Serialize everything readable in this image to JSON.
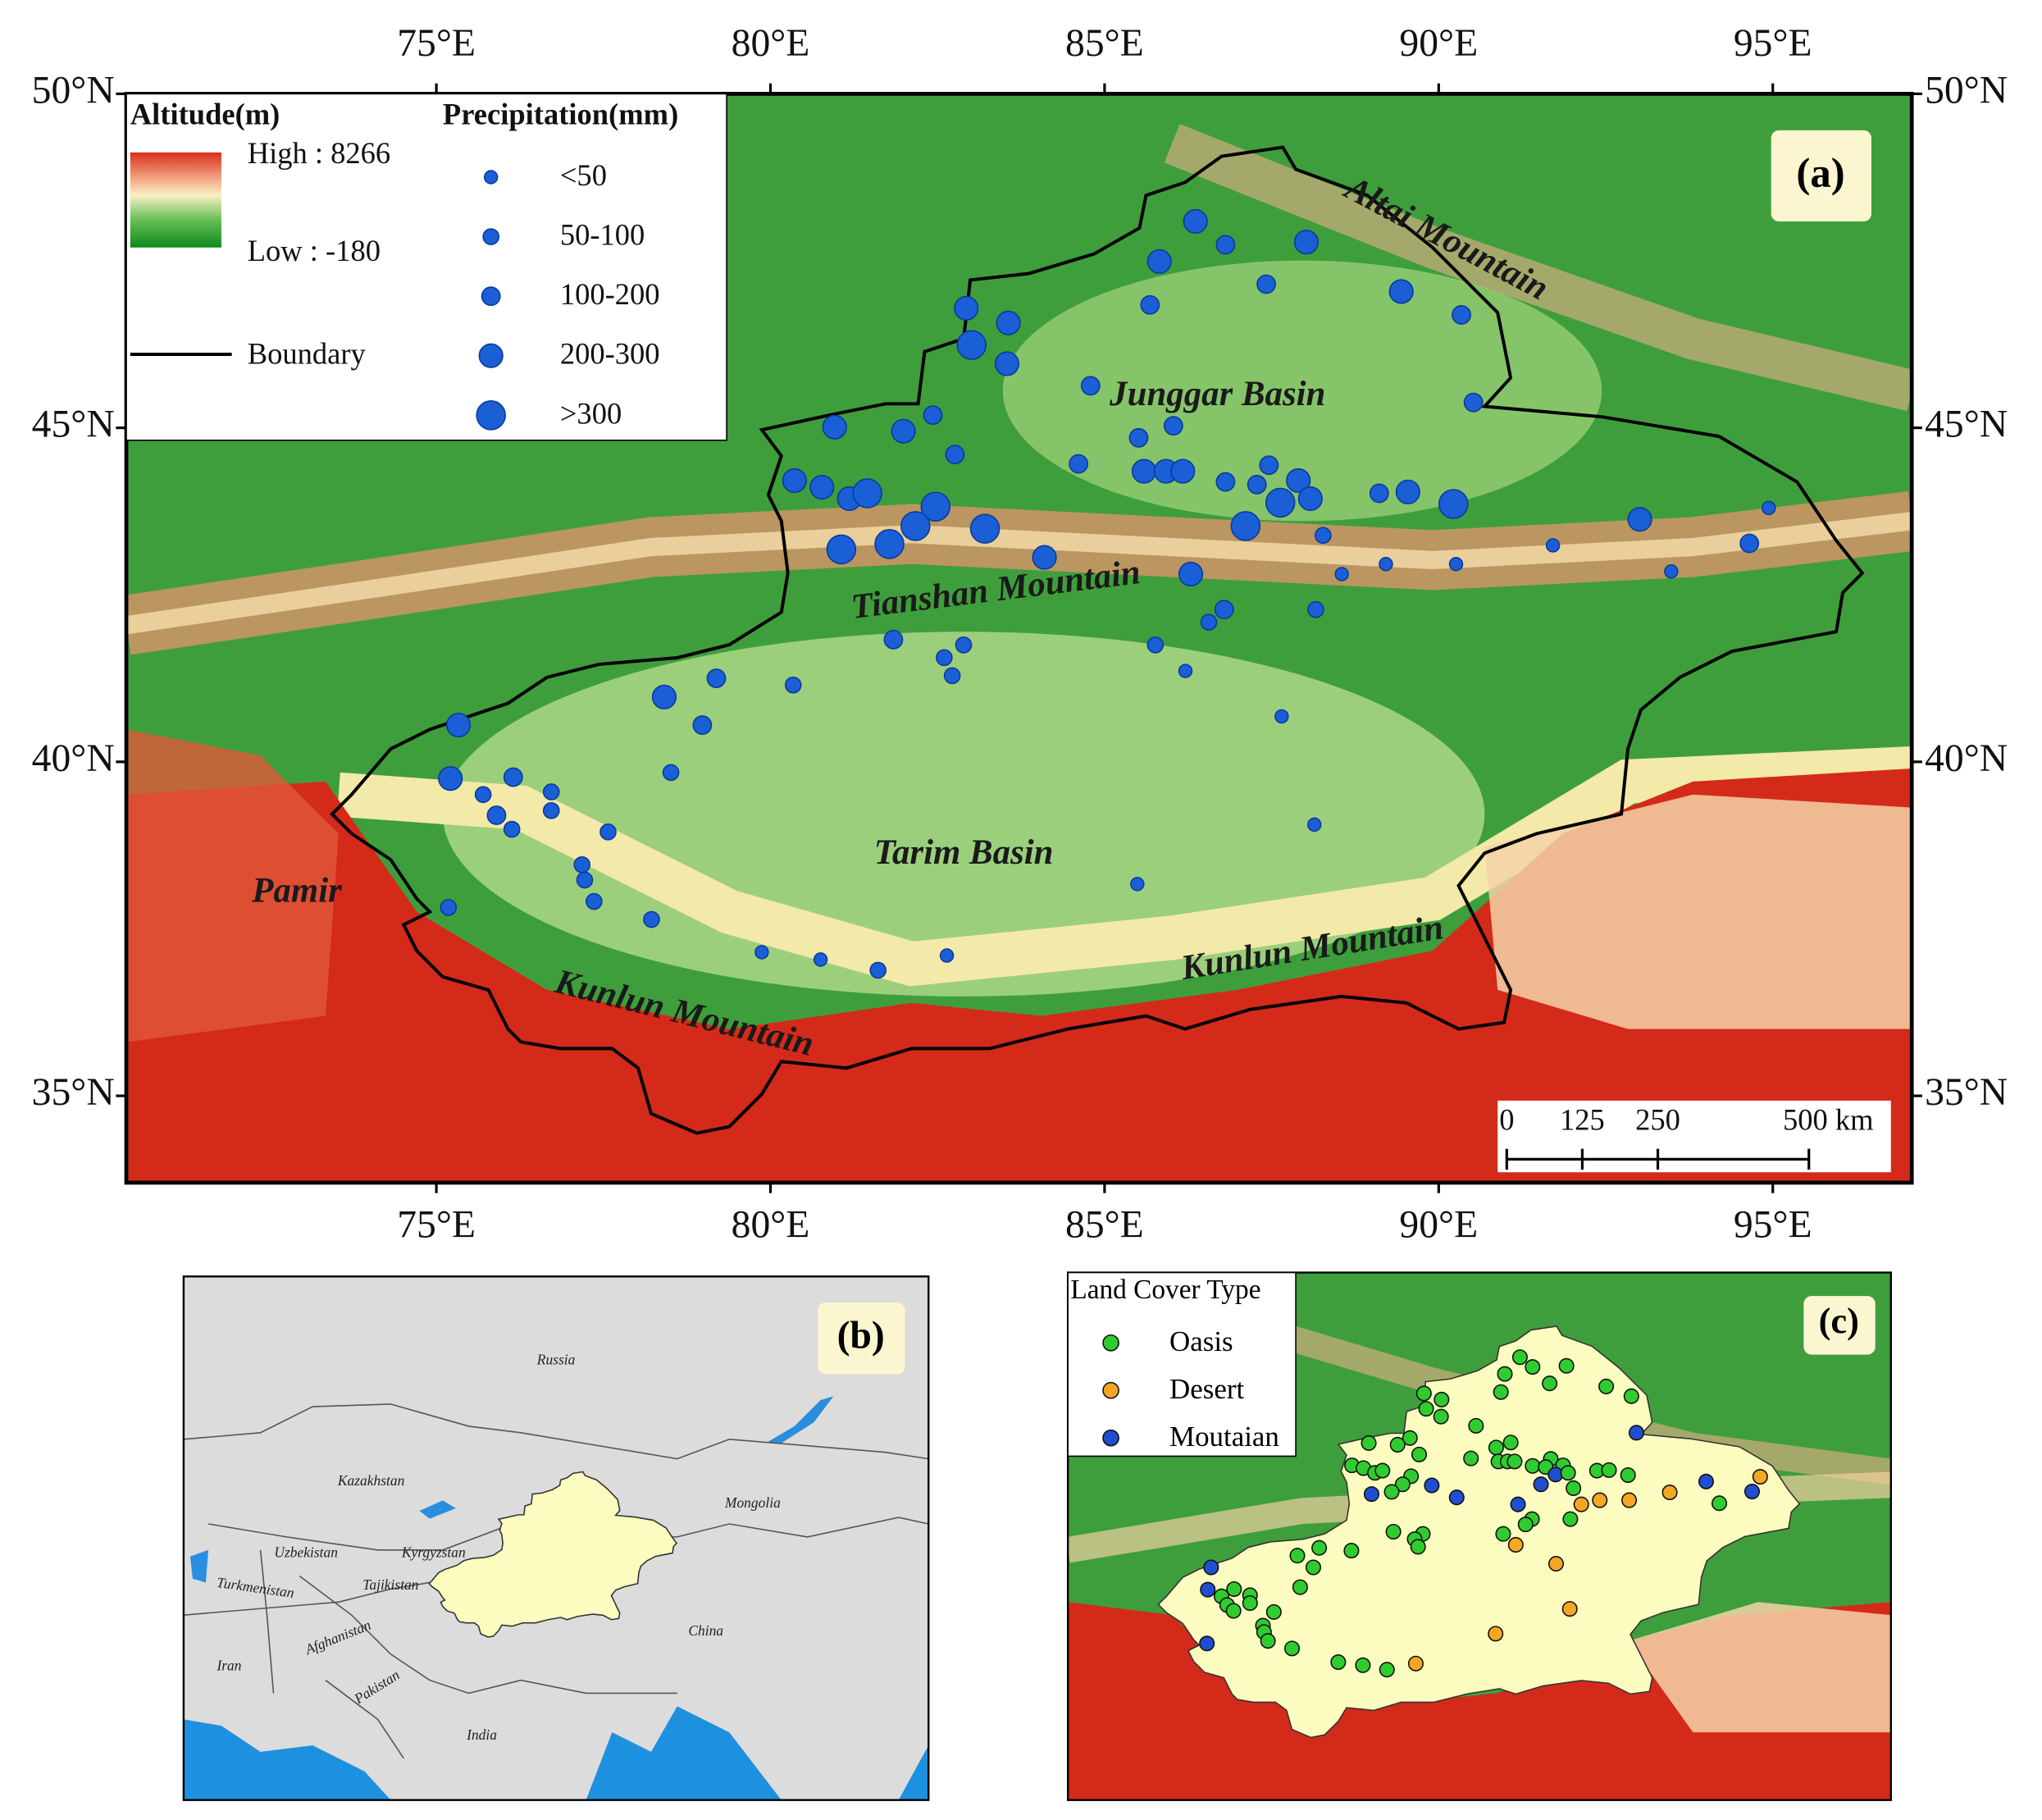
{
  "panel_a": {
    "label": "(a)",
    "lonlim": [
      70.36,
      97.08
    ],
    "latlim": [
      33.7,
      50.0
    ],
    "xticks": [
      {
        "value": 75,
        "label": "75°E"
      },
      {
        "value": 80,
        "label": "80°E"
      },
      {
        "value": 85,
        "label": "85°E"
      },
      {
        "value": 90,
        "label": "90°E"
      },
      {
        "value": 95,
        "label": "95°E"
      }
    ],
    "yticks": [
      {
        "value": 35,
        "label": "35°N"
      },
      {
        "value": 40,
        "label": "40°N"
      },
      {
        "value": 45,
        "label": "45°N"
      },
      {
        "value": 50,
        "label": "50°N"
      }
    ],
    "legend": {
      "altitude_title": "Altitude(m)",
      "high": "High : 8266",
      "low": "Low : -180",
      "boundary": "Boundary",
      "precip_title": "Precipitation(mm)",
      "precip_classes": [
        "<50",
        "50-100",
        "100-200",
        "200-300",
        ">300"
      ],
      "color": "#1a5fd6"
    },
    "annotations": [
      "Altai Mountain",
      "Junggar Basin",
      "Tianshan Mountain",
      "Tarim Basin",
      "Pamir",
      "Kunlun Mountain",
      "Kunlun Mountain"
    ],
    "scale_bar": {
      "ticks": [
        0,
        125,
        250,
        {
          "value": 500,
          "label": "500 km"
        }
      ]
    },
    "stations": [
      {
        "lon": 86.36,
        "lat": 48.09,
        "precip": 3,
        "cover": 0
      },
      {
        "lon": 86.81,
        "lat": 47.74,
        "precip": 2,
        "cover": 0
      },
      {
        "lon": 88.02,
        "lat": 47.78,
        "precip": 3,
        "cover": 0
      },
      {
        "lon": 85.82,
        "lat": 47.49,
        "precip": 3,
        "cover": 0
      },
      {
        "lon": 87.42,
        "lat": 47.15,
        "precip": 2,
        "cover": 0
      },
      {
        "lon": 89.44,
        "lat": 47.04,
        "precip": 3,
        "cover": 0
      },
      {
        "lon": 90.34,
        "lat": 46.69,
        "precip": 2,
        "cover": 0
      },
      {
        "lon": 85.68,
        "lat": 46.84,
        "precip": 2,
        "cover": 0
      },
      {
        "lon": 82.93,
        "lat": 46.79,
        "precip": 3,
        "cover": 0
      },
      {
        "lon": 83.56,
        "lat": 46.57,
        "precip": 3,
        "cover": 0
      },
      {
        "lon": 83.01,
        "lat": 46.24,
        "precip": 4,
        "cover": 0
      },
      {
        "lon": 83.54,
        "lat": 45.96,
        "precip": 3,
        "cover": 0
      },
      {
        "lon": 84.79,
        "lat": 45.63,
        "precip": 2,
        "cover": 0
      },
      {
        "lon": 90.52,
        "lat": 45.38,
        "precip": 2,
        "cover": 2
      },
      {
        "lon": 82.43,
        "lat": 45.19,
        "precip": 2,
        "cover": 0
      },
      {
        "lon": 80.96,
        "lat": 45.01,
        "precip": 3,
        "cover": 0
      },
      {
        "lon": 81.99,
        "lat": 44.95,
        "precip": 3,
        "cover": 0
      },
      {
        "lon": 85.51,
        "lat": 44.85,
        "precip": 2,
        "cover": 0
      },
      {
        "lon": 86.03,
        "lat": 45.03,
        "precip": 2,
        "cover": 0
      },
      {
        "lon": 82.76,
        "lat": 44.6,
        "precip": 2,
        "cover": 0
      },
      {
        "lon": 84.61,
        "lat": 44.46,
        "precip": 2,
        "cover": 0
      },
      {
        "lon": 85.59,
        "lat": 44.35,
        "precip": 3,
        "cover": 0
      },
      {
        "lon": 85.92,
        "lat": 44.35,
        "precip": 3,
        "cover": 0
      },
      {
        "lon": 86.17,
        "lat": 44.35,
        "precip": 3,
        "cover": 0
      },
      {
        "lon": 87.46,
        "lat": 44.44,
        "precip": 2,
        "cover": 0
      },
      {
        "lon": 80.36,
        "lat": 44.21,
        "precip": 3,
        "cover": 0
      },
      {
        "lon": 80.77,
        "lat": 44.11,
        "precip": 3,
        "cover": 0
      },
      {
        "lon": 81.18,
        "lat": 43.94,
        "precip": 3,
        "cover": 0
      },
      {
        "lon": 81.45,
        "lat": 44.02,
        "precip": 4,
        "cover": 0
      },
      {
        "lon": 82.47,
        "lat": 43.82,
        "precip": 4,
        "cover": 0
      },
      {
        "lon": 86.81,
        "lat": 44.19,
        "precip": 2,
        "cover": 0
      },
      {
        "lon": 87.28,
        "lat": 44.15,
        "precip": 2,
        "cover": 0
      },
      {
        "lon": 87.9,
        "lat": 44.21,
        "precip": 3,
        "cover": 0
      },
      {
        "lon": 87.63,
        "lat": 43.88,
        "precip": 4,
        "cover": 2
      },
      {
        "lon": 88.08,
        "lat": 43.94,
        "precip": 3,
        "cover": 0
      },
      {
        "lon": 89.11,
        "lat": 44.02,
        "precip": 2,
        "cover": 0
      },
      {
        "lon": 89.54,
        "lat": 44.04,
        "precip": 3,
        "cover": 0
      },
      {
        "lon": 90.22,
        "lat": 43.86,
        "precip": 4,
        "cover": 0
      },
      {
        "lon": 82.17,
        "lat": 43.53,
        "precip": 4,
        "cover": 0
      },
      {
        "lon": 83.21,
        "lat": 43.49,
        "precip": 4,
        "cover": 2
      },
      {
        "lon": 87.11,
        "lat": 43.53,
        "precip": 4,
        "cover": 2
      },
      {
        "lon": 81.06,
        "lat": 43.18,
        "precip": 4,
        "cover": 2
      },
      {
        "lon": 81.78,
        "lat": 43.26,
        "precip": 4,
        "cover": 0
      },
      {
        "lon": 84.1,
        "lat": 43.06,
        "precip": 3,
        "cover": 2
      },
      {
        "lon": 88.27,
        "lat": 43.39,
        "precip": 1,
        "cover": 0
      },
      {
        "lon": 93.01,
        "lat": 43.63,
        "precip": 3,
        "cover": 2
      },
      {
        "lon": 94.65,
        "lat": 43.27,
        "precip": 2,
        "cover": 2
      },
      {
        "lon": 94.94,
        "lat": 43.8,
        "precip": 0,
        "cover": 1
      },
      {
        "lon": 86.29,
        "lat": 42.81,
        "precip": 3,
        "cover": 2
      },
      {
        "lon": 88.55,
        "lat": 42.81,
        "precip": 0,
        "cover": 1
      },
      {
        "lon": 89.21,
        "lat": 42.96,
        "precip": 0,
        "cover": 1
      },
      {
        "lon": 90.26,
        "lat": 42.96,
        "precip": 0,
        "cover": 1
      },
      {
        "lon": 91.71,
        "lat": 43.24,
        "precip": 0,
        "cover": 1
      },
      {
        "lon": 93.48,
        "lat": 42.85,
        "precip": 0,
        "cover": 0
      },
      {
        "lon": 86.79,
        "lat": 42.28,
        "precip": 2,
        "cover": 0
      },
      {
        "lon": 86.56,
        "lat": 42.09,
        "precip": 1,
        "cover": 0
      },
      {
        "lon": 88.16,
        "lat": 42.28,
        "precip": 1,
        "cover": 0
      },
      {
        "lon": 81.84,
        "lat": 41.83,
        "precip": 2,
        "cover": 0
      },
      {
        "lon": 82.89,
        "lat": 41.75,
        "precip": 1,
        "cover": 0
      },
      {
        "lon": 82.6,
        "lat": 41.56,
        "precip": 1,
        "cover": 0
      },
      {
        "lon": 82.72,
        "lat": 41.29,
        "precip": 1,
        "cover": 0
      },
      {
        "lon": 85.76,
        "lat": 41.75,
        "precip": 1,
        "cover": 0
      },
      {
        "lon": 86.21,
        "lat": 41.36,
        "precip": 0,
        "cover": 1
      },
      {
        "lon": 79.19,
        "lat": 41.25,
        "precip": 2,
        "cover": 0
      },
      {
        "lon": 80.34,
        "lat": 41.15,
        "precip": 1,
        "cover": 0
      },
      {
        "lon": 78.41,
        "lat": 40.97,
        "precip": 3,
        "cover": 0
      },
      {
        "lon": 78.98,
        "lat": 40.55,
        "precip": 2,
        "cover": 0
      },
      {
        "lon": 75.33,
        "lat": 40.55,
        "precip": 3,
        "cover": 2
      },
      {
        "lon": 87.65,
        "lat": 40.68,
        "precip": 0,
        "cover": 1
      },
      {
        "lon": 75.21,
        "lat": 39.75,
        "precip": 3,
        "cover": 2
      },
      {
        "lon": 76.15,
        "lat": 39.77,
        "precip": 2,
        "cover": 0
      },
      {
        "lon": 78.51,
        "lat": 39.84,
        "precip": 1,
        "cover": 0
      },
      {
        "lon": 75.7,
        "lat": 39.51,
        "precip": 1,
        "cover": 0
      },
      {
        "lon": 76.72,
        "lat": 39.55,
        "precip": 1,
        "cover": 0
      },
      {
        "lon": 75.9,
        "lat": 39.2,
        "precip": 2,
        "cover": 0
      },
      {
        "lon": 76.13,
        "lat": 38.99,
        "precip": 1,
        "cover": 0
      },
      {
        "lon": 76.72,
        "lat": 39.27,
        "precip": 1,
        "cover": 0
      },
      {
        "lon": 77.57,
        "lat": 38.95,
        "precip": 1,
        "cover": 0
      },
      {
        "lon": 88.14,
        "lat": 39.06,
        "precip": 0,
        "cover": 1
      },
      {
        "lon": 77.18,
        "lat": 38.46,
        "precip": 1,
        "cover": 0
      },
      {
        "lon": 77.22,
        "lat": 38.23,
        "precip": 1,
        "cover": 0
      },
      {
        "lon": 77.36,
        "lat": 37.91,
        "precip": 1,
        "cover": 0
      },
      {
        "lon": 75.18,
        "lat": 37.82,
        "precip": 1,
        "cover": 2
      },
      {
        "lon": 78.22,
        "lat": 37.64,
        "precip": 1,
        "cover": 0
      },
      {
        "lon": 85.49,
        "lat": 38.17,
        "precip": 0,
        "cover": 1
      },
      {
        "lon": 79.87,
        "lat": 37.15,
        "precip": 0,
        "cover": 0
      },
      {
        "lon": 80.75,
        "lat": 37.04,
        "precip": 0,
        "cover": 0
      },
      {
        "lon": 81.61,
        "lat": 36.88,
        "precip": 1,
        "cover": 0
      },
      {
        "lon": 82.64,
        "lat": 37.1,
        "precip": 0,
        "cover": 1
      }
    ]
  },
  "panel_b": {
    "label": "(b)",
    "countries": [
      "Russia",
      "Kazakhstan",
      "Mongolia",
      "Uzbekistan",
      "Kyrgyzstan",
      "Turkmenistan",
      "Tajikistan",
      "Afghanistan",
      "Iran",
      "Pakistan",
      "India",
      "China"
    ]
  },
  "panel_c": {
    "label": "(c)",
    "legend_title": "Land Cover Type",
    "classes": [
      {
        "name": "Oasis",
        "color": "#2fcc2f"
      },
      {
        "name": "Desert",
        "color": "#f5a623"
      },
      {
        "name": "Moutaian",
        "color": "#1f4fd0"
      }
    ]
  }
}
